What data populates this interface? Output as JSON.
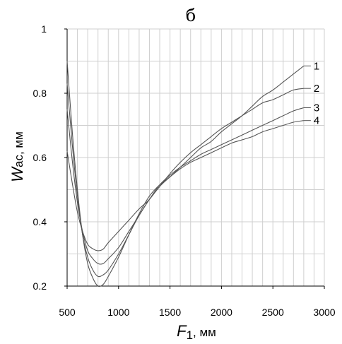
{
  "chart_data": {
    "type": "line",
    "panel_label": "б",
    "xlabel": {
      "symbol": "F",
      "subscript": "1",
      "unit": ", мм"
    },
    "ylabel": {
      "symbol": "W",
      "subscript": "ас",
      "unit": ", мм"
    },
    "xlim": [
      500,
      3000
    ],
    "ylim": [
      0.2,
      1.0
    ],
    "x_ticks": [
      500,
      1000,
      1500,
      2000,
      2500,
      3000
    ],
    "y_ticks": [
      0.2,
      0.4,
      0.6,
      0.8,
      1
    ],
    "grid": true,
    "series": [
      {
        "name": "1",
        "points": [
          [
            500,
            0.62
          ],
          [
            550,
            0.52
          ],
          [
            600,
            0.43
          ],
          [
            650,
            0.37
          ],
          [
            700,
            0.33
          ],
          [
            750,
            0.316
          ],
          [
            800,
            0.31
          ],
          [
            850,
            0.315
          ],
          [
            900,
            0.335
          ],
          [
            1000,
            0.37
          ],
          [
            1100,
            0.405
          ],
          [
            1200,
            0.44
          ],
          [
            1300,
            0.47
          ],
          [
            1400,
            0.51
          ],
          [
            1500,
            0.54
          ],
          [
            1600,
            0.57
          ],
          [
            1700,
            0.6
          ],
          [
            1800,
            0.63
          ],
          [
            1900,
            0.65
          ],
          [
            2000,
            0.68
          ],
          [
            2100,
            0.705
          ],
          [
            2200,
            0.73
          ],
          [
            2300,
            0.76
          ],
          [
            2400,
            0.79
          ],
          [
            2500,
            0.81
          ],
          [
            2600,
            0.835
          ],
          [
            2700,
            0.86
          ],
          [
            2800,
            0.885
          ]
        ]
      },
      {
        "name": "2",
        "points": [
          [
            500,
            0.75
          ],
          [
            550,
            0.59
          ],
          [
            600,
            0.46
          ],
          [
            650,
            0.37
          ],
          [
            700,
            0.31
          ],
          [
            750,
            0.285
          ],
          [
            800,
            0.27
          ],
          [
            850,
            0.27
          ],
          [
            900,
            0.285
          ],
          [
            1000,
            0.32
          ],
          [
            1100,
            0.37
          ],
          [
            1200,
            0.42
          ],
          [
            1300,
            0.47
          ],
          [
            1400,
            0.51
          ],
          [
            1500,
            0.55
          ],
          [
            1600,
            0.585
          ],
          [
            1700,
            0.615
          ],
          [
            1800,
            0.64
          ],
          [
            1900,
            0.665
          ],
          [
            2000,
            0.69
          ],
          [
            2100,
            0.71
          ],
          [
            2200,
            0.73
          ],
          [
            2300,
            0.75
          ],
          [
            2400,
            0.77
          ],
          [
            2500,
            0.78
          ],
          [
            2600,
            0.795
          ],
          [
            2700,
            0.81
          ],
          [
            2800,
            0.815
          ]
        ]
      },
      {
        "name": "3",
        "points": [
          [
            500,
            0.83
          ],
          [
            550,
            0.64
          ],
          [
            600,
            0.48
          ],
          [
            650,
            0.36
          ],
          [
            700,
            0.29
          ],
          [
            750,
            0.25
          ],
          [
            800,
            0.23
          ],
          [
            850,
            0.235
          ],
          [
            900,
            0.25
          ],
          [
            1000,
            0.3
          ],
          [
            1100,
            0.36
          ],
          [
            1200,
            0.42
          ],
          [
            1300,
            0.47
          ],
          [
            1400,
            0.515
          ],
          [
            1500,
            0.545
          ],
          [
            1600,
            0.57
          ],
          [
            1700,
            0.59
          ],
          [
            1800,
            0.61
          ],
          [
            1900,
            0.625
          ],
          [
            2000,
            0.64
          ],
          [
            2100,
            0.655
          ],
          [
            2200,
            0.67
          ],
          [
            2300,
            0.685
          ],
          [
            2400,
            0.7
          ],
          [
            2500,
            0.715
          ],
          [
            2600,
            0.73
          ],
          [
            2700,
            0.745
          ],
          [
            2800,
            0.755
          ]
        ]
      },
      {
        "name": "4",
        "points": [
          [
            500,
            0.9
          ],
          [
            550,
            0.68
          ],
          [
            600,
            0.5
          ],
          [
            650,
            0.36
          ],
          [
            700,
            0.27
          ],
          [
            750,
            0.225
          ],
          [
            800,
            0.2
          ],
          [
            850,
            0.205
          ],
          [
            900,
            0.23
          ],
          [
            1000,
            0.29
          ],
          [
            1100,
            0.36
          ],
          [
            1200,
            0.425
          ],
          [
            1300,
            0.48
          ],
          [
            1400,
            0.515
          ],
          [
            1500,
            0.54
          ],
          [
            1600,
            0.565
          ],
          [
            1700,
            0.585
          ],
          [
            1800,
            0.6
          ],
          [
            1900,
            0.615
          ],
          [
            2000,
            0.63
          ],
          [
            2100,
            0.645
          ],
          [
            2200,
            0.655
          ],
          [
            2300,
            0.665
          ],
          [
            2400,
            0.68
          ],
          [
            2500,
            0.69
          ],
          [
            2600,
            0.7
          ],
          [
            2700,
            0.71
          ],
          [
            2800,
            0.715
          ]
        ]
      }
    ]
  }
}
